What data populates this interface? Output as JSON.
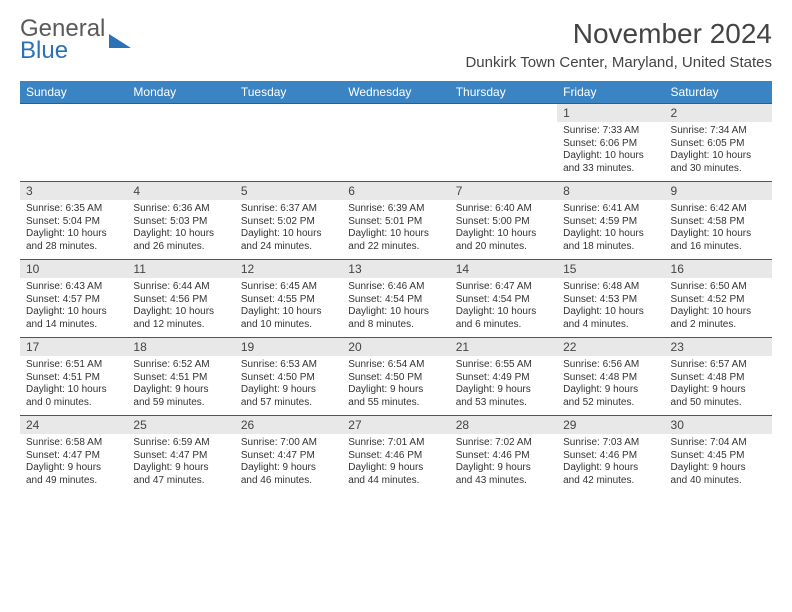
{
  "logo": {
    "line1": "General",
    "line2": "Blue"
  },
  "title": "November 2024",
  "location": "Dunkirk Town Center, Maryland, United States",
  "colors": {
    "header_bg": "#3b84c4",
    "header_text": "#ffffff",
    "daynum_bg": "#e8e8e8",
    "row_border": "#3b5a7a",
    "logo_blue": "#2a72b5",
    "logo_gray": "#5a5a5a"
  },
  "weekdays": [
    "Sunday",
    "Monday",
    "Tuesday",
    "Wednesday",
    "Thursday",
    "Friday",
    "Saturday"
  ],
  "grid": [
    [
      {
        "blank": true
      },
      {
        "blank": true
      },
      {
        "blank": true
      },
      {
        "blank": true
      },
      {
        "blank": true
      },
      {
        "day": "1",
        "sunrise": "Sunrise: 7:33 AM",
        "sunset": "Sunset: 6:06 PM",
        "daylight1": "Daylight: 10 hours",
        "daylight2": "and 33 minutes."
      },
      {
        "day": "2",
        "sunrise": "Sunrise: 7:34 AM",
        "sunset": "Sunset: 6:05 PM",
        "daylight1": "Daylight: 10 hours",
        "daylight2": "and 30 minutes."
      }
    ],
    [
      {
        "day": "3",
        "sunrise": "Sunrise: 6:35 AM",
        "sunset": "Sunset: 5:04 PM",
        "daylight1": "Daylight: 10 hours",
        "daylight2": "and 28 minutes."
      },
      {
        "day": "4",
        "sunrise": "Sunrise: 6:36 AM",
        "sunset": "Sunset: 5:03 PM",
        "daylight1": "Daylight: 10 hours",
        "daylight2": "and 26 minutes."
      },
      {
        "day": "5",
        "sunrise": "Sunrise: 6:37 AM",
        "sunset": "Sunset: 5:02 PM",
        "daylight1": "Daylight: 10 hours",
        "daylight2": "and 24 minutes."
      },
      {
        "day": "6",
        "sunrise": "Sunrise: 6:39 AM",
        "sunset": "Sunset: 5:01 PM",
        "daylight1": "Daylight: 10 hours",
        "daylight2": "and 22 minutes."
      },
      {
        "day": "7",
        "sunrise": "Sunrise: 6:40 AM",
        "sunset": "Sunset: 5:00 PM",
        "daylight1": "Daylight: 10 hours",
        "daylight2": "and 20 minutes."
      },
      {
        "day": "8",
        "sunrise": "Sunrise: 6:41 AM",
        "sunset": "Sunset: 4:59 PM",
        "daylight1": "Daylight: 10 hours",
        "daylight2": "and 18 minutes."
      },
      {
        "day": "9",
        "sunrise": "Sunrise: 6:42 AM",
        "sunset": "Sunset: 4:58 PM",
        "daylight1": "Daylight: 10 hours",
        "daylight2": "and 16 minutes."
      }
    ],
    [
      {
        "day": "10",
        "sunrise": "Sunrise: 6:43 AM",
        "sunset": "Sunset: 4:57 PM",
        "daylight1": "Daylight: 10 hours",
        "daylight2": "and 14 minutes."
      },
      {
        "day": "11",
        "sunrise": "Sunrise: 6:44 AM",
        "sunset": "Sunset: 4:56 PM",
        "daylight1": "Daylight: 10 hours",
        "daylight2": "and 12 minutes."
      },
      {
        "day": "12",
        "sunrise": "Sunrise: 6:45 AM",
        "sunset": "Sunset: 4:55 PM",
        "daylight1": "Daylight: 10 hours",
        "daylight2": "and 10 minutes."
      },
      {
        "day": "13",
        "sunrise": "Sunrise: 6:46 AM",
        "sunset": "Sunset: 4:54 PM",
        "daylight1": "Daylight: 10 hours",
        "daylight2": "and 8 minutes."
      },
      {
        "day": "14",
        "sunrise": "Sunrise: 6:47 AM",
        "sunset": "Sunset: 4:54 PM",
        "daylight1": "Daylight: 10 hours",
        "daylight2": "and 6 minutes."
      },
      {
        "day": "15",
        "sunrise": "Sunrise: 6:48 AM",
        "sunset": "Sunset: 4:53 PM",
        "daylight1": "Daylight: 10 hours",
        "daylight2": "and 4 minutes."
      },
      {
        "day": "16",
        "sunrise": "Sunrise: 6:50 AM",
        "sunset": "Sunset: 4:52 PM",
        "daylight1": "Daylight: 10 hours",
        "daylight2": "and 2 minutes."
      }
    ],
    [
      {
        "day": "17",
        "sunrise": "Sunrise: 6:51 AM",
        "sunset": "Sunset: 4:51 PM",
        "daylight1": "Daylight: 10 hours",
        "daylight2": "and 0 minutes."
      },
      {
        "day": "18",
        "sunrise": "Sunrise: 6:52 AM",
        "sunset": "Sunset: 4:51 PM",
        "daylight1": "Daylight: 9 hours",
        "daylight2": "and 59 minutes."
      },
      {
        "day": "19",
        "sunrise": "Sunrise: 6:53 AM",
        "sunset": "Sunset: 4:50 PM",
        "daylight1": "Daylight: 9 hours",
        "daylight2": "and 57 minutes."
      },
      {
        "day": "20",
        "sunrise": "Sunrise: 6:54 AM",
        "sunset": "Sunset: 4:50 PM",
        "daylight1": "Daylight: 9 hours",
        "daylight2": "and 55 minutes."
      },
      {
        "day": "21",
        "sunrise": "Sunrise: 6:55 AM",
        "sunset": "Sunset: 4:49 PM",
        "daylight1": "Daylight: 9 hours",
        "daylight2": "and 53 minutes."
      },
      {
        "day": "22",
        "sunrise": "Sunrise: 6:56 AM",
        "sunset": "Sunset: 4:48 PM",
        "daylight1": "Daylight: 9 hours",
        "daylight2": "and 52 minutes."
      },
      {
        "day": "23",
        "sunrise": "Sunrise: 6:57 AM",
        "sunset": "Sunset: 4:48 PM",
        "daylight1": "Daylight: 9 hours",
        "daylight2": "and 50 minutes."
      }
    ],
    [
      {
        "day": "24",
        "sunrise": "Sunrise: 6:58 AM",
        "sunset": "Sunset: 4:47 PM",
        "daylight1": "Daylight: 9 hours",
        "daylight2": "and 49 minutes."
      },
      {
        "day": "25",
        "sunrise": "Sunrise: 6:59 AM",
        "sunset": "Sunset: 4:47 PM",
        "daylight1": "Daylight: 9 hours",
        "daylight2": "and 47 minutes."
      },
      {
        "day": "26",
        "sunrise": "Sunrise: 7:00 AM",
        "sunset": "Sunset: 4:47 PM",
        "daylight1": "Daylight: 9 hours",
        "daylight2": "and 46 minutes."
      },
      {
        "day": "27",
        "sunrise": "Sunrise: 7:01 AM",
        "sunset": "Sunset: 4:46 PM",
        "daylight1": "Daylight: 9 hours",
        "daylight2": "and 44 minutes."
      },
      {
        "day": "28",
        "sunrise": "Sunrise: 7:02 AM",
        "sunset": "Sunset: 4:46 PM",
        "daylight1": "Daylight: 9 hours",
        "daylight2": "and 43 minutes."
      },
      {
        "day": "29",
        "sunrise": "Sunrise: 7:03 AM",
        "sunset": "Sunset: 4:46 PM",
        "daylight1": "Daylight: 9 hours",
        "daylight2": "and 42 minutes."
      },
      {
        "day": "30",
        "sunrise": "Sunrise: 7:04 AM",
        "sunset": "Sunset: 4:45 PM",
        "daylight1": "Daylight: 9 hours",
        "daylight2": "and 40 minutes."
      }
    ]
  ]
}
